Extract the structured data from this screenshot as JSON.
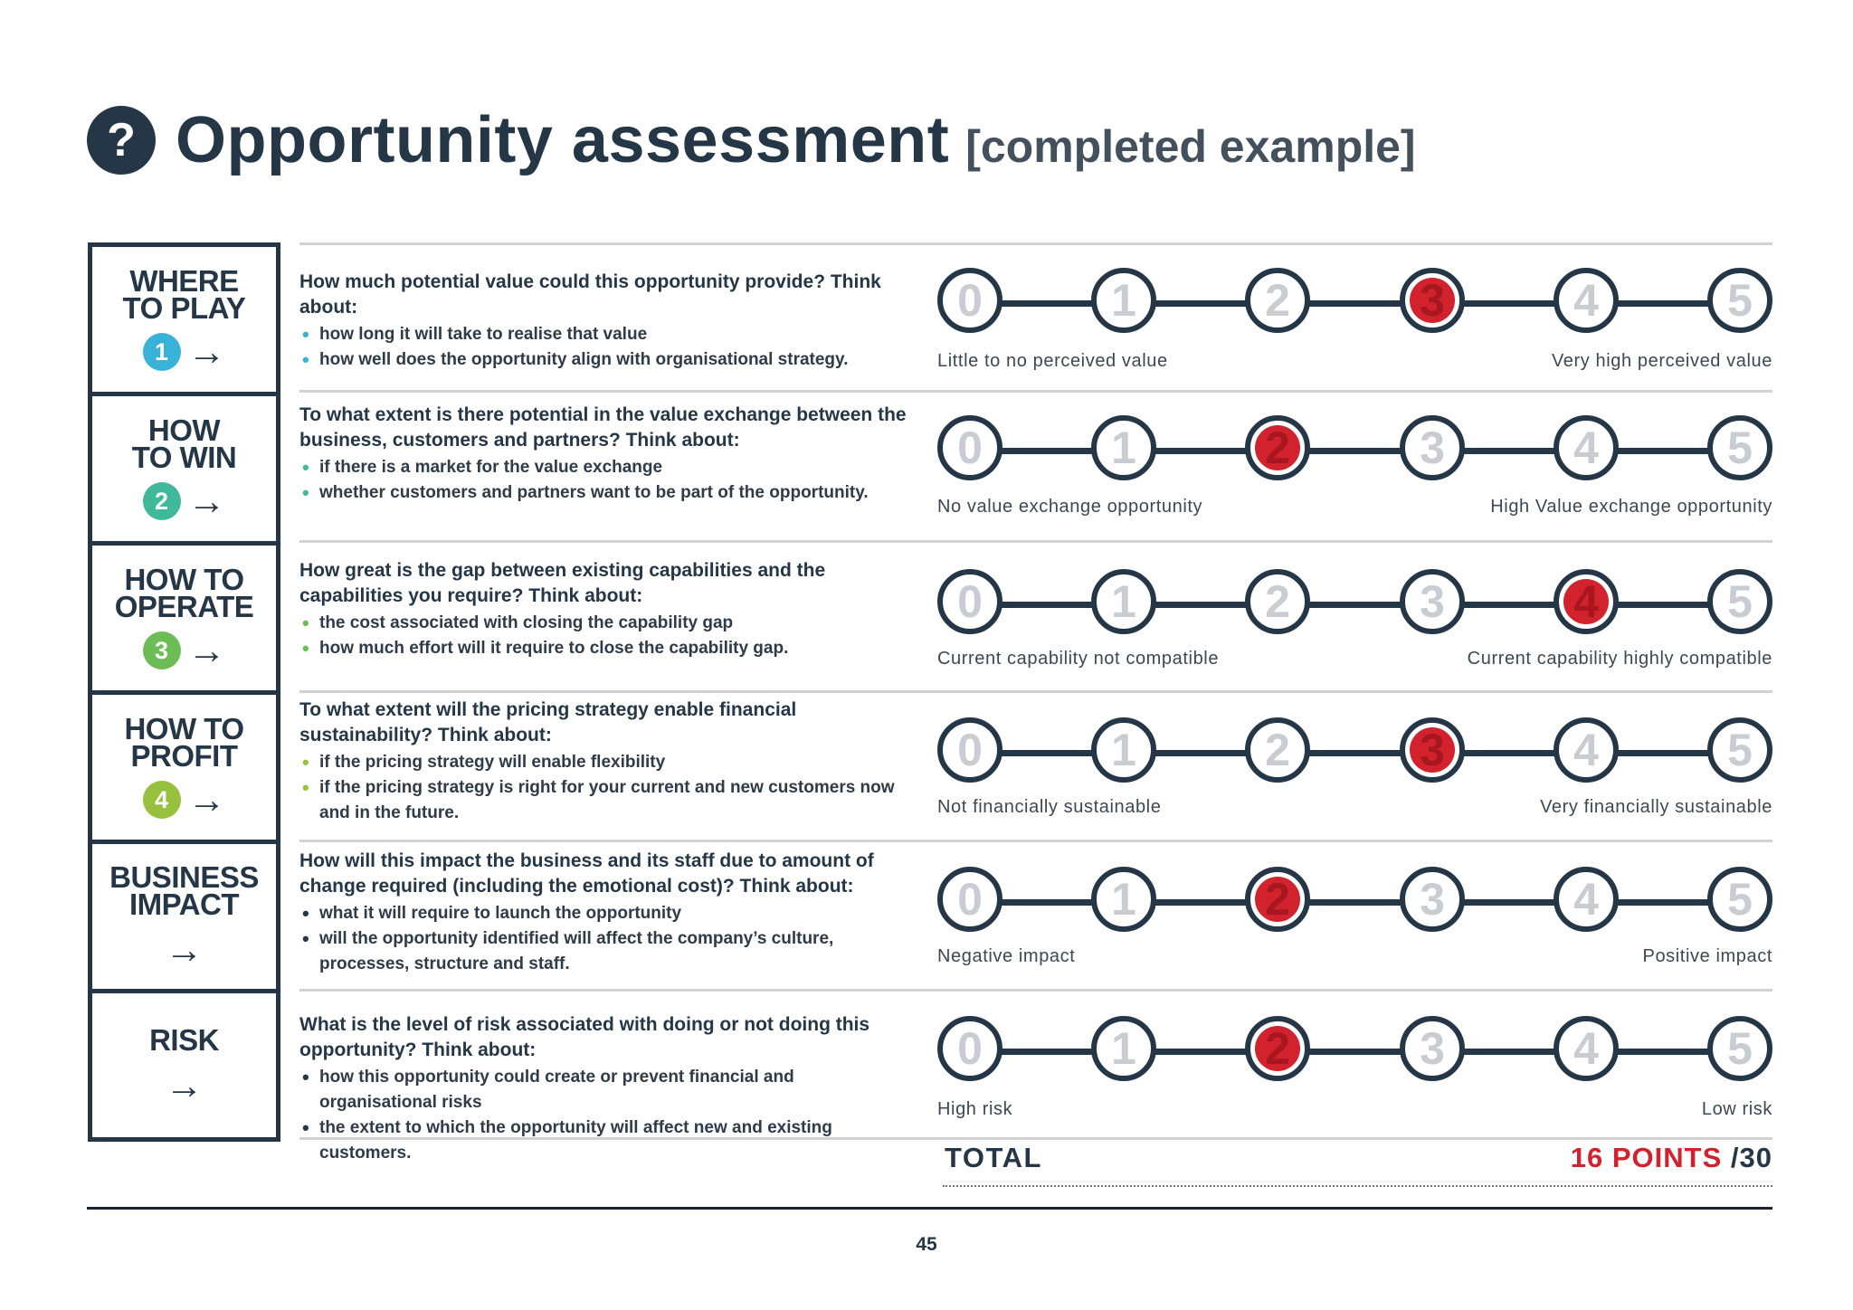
{
  "header": {
    "icon": "question-mark-icon",
    "icon_glyph": "?",
    "title": "Opportunity assessment",
    "subtitle": "[completed example]"
  },
  "colors": {
    "primary": "#253746",
    "selected": "#d2222d",
    "unselected_number": "#c9ccd0",
    "step1": "#38b2d6",
    "step2": "#40b89a",
    "step3": "#6cbd56",
    "step4": "#97c13c"
  },
  "sidebar": [
    {
      "label": "WHERE\nTO PLAY",
      "step": "1",
      "icon": "arrow-right-icon",
      "arrow": "→"
    },
    {
      "label": "HOW\nTO WIN",
      "step": "2",
      "icon": "arrow-right-icon",
      "arrow": "→"
    },
    {
      "label": "HOW TO\nOPERATE",
      "step": "3",
      "icon": "arrow-right-icon",
      "arrow": "→"
    },
    {
      "label": "HOW TO\nPROFIT",
      "step": "4",
      "icon": "arrow-right-icon",
      "arrow": "→"
    },
    {
      "label": "BUSINESS\nIMPACT",
      "step": null,
      "icon": "arrow-right-icon",
      "arrow": "→"
    },
    {
      "label": "RISK",
      "step": null,
      "icon": "arrow-right-icon",
      "arrow": "→"
    }
  ],
  "bullet_glyph": "•",
  "scale_numbers": [
    "0",
    "1",
    "2",
    "3",
    "4",
    "5"
  ],
  "rows": [
    {
      "question": "How much potential value could this opportunity provide? Think about:",
      "bullets": [
        "how long it will take to realise that value",
        "how well does the opportunity align with organisational strategy."
      ],
      "selected": 3,
      "min_label": "Little to no perceived value",
      "max_label": "Very high perceived value"
    },
    {
      "question": "To what extent is there potential in the value exchange between the business, customers and partners? Think about:",
      "bullets": [
        "if there is a market for the value exchange",
        "whether customers and partners want to be part of the opportunity."
      ],
      "selected": 2,
      "min_label": "No value exchange opportunity",
      "max_label": "High Value exchange opportunity"
    },
    {
      "question": "How great is the gap between existing capabilities and the capabilities you require? Think about:",
      "bullets": [
        "the cost associated with closing the capability gap",
        "how much effort will it require to close the capability gap."
      ],
      "selected": 4,
      "min_label": "Current capability not compatible",
      "max_label": "Current capability highly compatible"
    },
    {
      "question": "To what extent will the pricing strategy enable financial sustainability? Think about:",
      "bullets": [
        "if the pricing strategy will enable flexibility",
        "if the pricing strategy is right for your current and new customers now and in the future."
      ],
      "selected": 3,
      "min_label": "Not financially sustainable",
      "max_label": "Very financially sustainable"
    },
    {
      "question": "How will this impact the business and its staff due to amount of change required (including the emotional cost)? Think about:",
      "bullets": [
        "what it will require to launch the opportunity",
        "will the opportunity identified will affect the company’s culture, processes, structure and staff."
      ],
      "selected": 2,
      "min_label": "Negative impact",
      "max_label": "Positive impact"
    },
    {
      "question": "What is the level of risk associated with doing or not doing this opportunity? Think about:",
      "bullets": [
        "how this opportunity could create or prevent financial and organisational risks",
        "the extent to which the opportunity will affect new and existing customers."
      ],
      "selected": 2,
      "min_label": "High risk",
      "max_label": "Low risk"
    }
  ],
  "total": {
    "label": "TOTAL",
    "points": "16 POINTS",
    "max": "/30"
  },
  "page_number": "45"
}
